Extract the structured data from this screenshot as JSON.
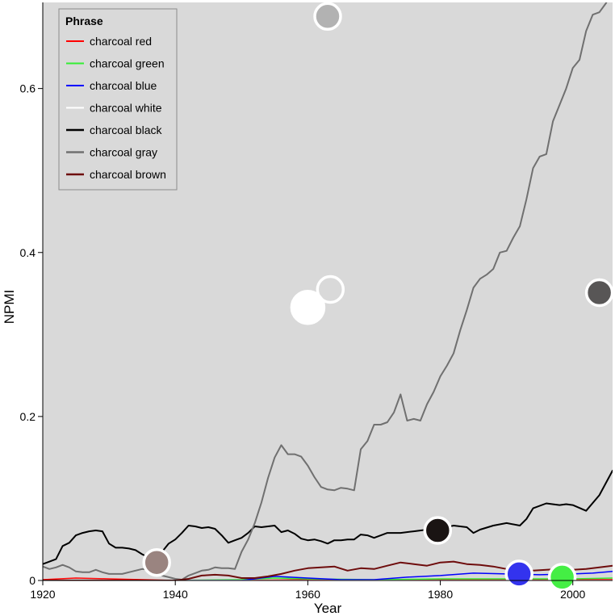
{
  "chart_data": {
    "type": "line",
    "xlabel": "Year",
    "ylabel": "NPMI",
    "xlim": [
      1920,
      2006
    ],
    "ylim": [
      0,
      0.705
    ],
    "x_ticks": [
      1920,
      1940,
      1960,
      1980,
      2000
    ],
    "y_ticks": [
      0,
      0.2,
      0.4,
      0.6
    ],
    "y_tick_labels": [
      "0",
      "0.2",
      "0.4",
      "0.6"
    ],
    "background": "#d9d9d9",
    "grid": false,
    "legend": {
      "title": "Phrase",
      "placement": "top-left"
    },
    "series": [
      {
        "name": "charcoal red",
        "color": "#ff0000",
        "width": 1.5,
        "x": [
          1920,
          1925,
          1930,
          1935,
          1940,
          1950,
          1960,
          1970,
          1980,
          1990,
          2000,
          2006
        ],
        "y": [
          0.001,
          0.003,
          0.002,
          0.001,
          0.0,
          0.0,
          0.001,
          0.0,
          0.001,
          0.001,
          0.001,
          0.001
        ]
      },
      {
        "name": "charcoal green",
        "color": "#33ee33",
        "width": 1.5,
        "x": [
          1920,
          1930,
          1940,
          1950,
          1955,
          1960,
          1970,
          1980,
          1990,
          2000,
          2006
        ],
        "y": [
          0.0,
          0.0,
          0.0,
          0.001,
          0.003,
          0.002,
          0.001,
          0.002,
          0.002,
          0.002,
          0.003
        ]
      },
      {
        "name": "charcoal blue",
        "color": "#0000ff",
        "width": 1.5,
        "x": [
          1920,
          1930,
          1940,
          1950,
          1955,
          1960,
          1965,
          1970,
          1975,
          1980,
          1985,
          1990,
          1995,
          2000,
          2003,
          2006
        ],
        "y": [
          0.0,
          0.0,
          0.0,
          0.0,
          0.005,
          0.003,
          0.001,
          0.001,
          0.004,
          0.006,
          0.009,
          0.008,
          0.007,
          0.008,
          0.009,
          0.011
        ]
      },
      {
        "name": "charcoal white",
        "color": "#ffffff",
        "width": 1.5,
        "x": [
          1920,
          1940,
          1960,
          1980,
          2000,
          2006
        ],
        "y": [
          0.0,
          0.0,
          0.0,
          0.0,
          0.0,
          0.0
        ]
      },
      {
        "name": "charcoal black",
        "color": "#000000",
        "width": 2,
        "x": [
          1920,
          1922,
          1923,
          1924,
          1925,
          1926,
          1927,
          1928,
          1929,
          1930,
          1931,
          1932,
          1933,
          1934,
          1935,
          1936,
          1937,
          1938,
          1939,
          1940,
          1941,
          1942,
          1943,
          1944,
          1945,
          1946,
          1947,
          1948,
          1949,
          1950,
          1951,
          1952,
          1953,
          1954,
          1955,
          1956,
          1957,
          1958,
          1959,
          1960,
          1961,
          1962,
          1963,
          1964,
          1965,
          1966,
          1967,
          1968,
          1969,
          1970,
          1972,
          1974,
          1976,
          1978,
          1980,
          1982,
          1984,
          1985,
          1986,
          1988,
          1990,
          1992,
          1993,
          1994,
          1996,
          1998,
          1999,
          2000,
          2002,
          2004,
          2006
        ],
        "y": [
          0.02,
          0.026,
          0.042,
          0.046,
          0.055,
          0.058,
          0.06,
          0.061,
          0.06,
          0.045,
          0.04,
          0.04,
          0.039,
          0.037,
          0.032,
          0.028,
          0.027,
          0.035,
          0.045,
          0.05,
          0.058,
          0.067,
          0.066,
          0.064,
          0.065,
          0.063,
          0.055,
          0.046,
          0.049,
          0.052,
          0.058,
          0.066,
          0.065,
          0.066,
          0.067,
          0.059,
          0.061,
          0.057,
          0.051,
          0.049,
          0.05,
          0.048,
          0.045,
          0.049,
          0.049,
          0.05,
          0.05,
          0.056,
          0.055,
          0.052,
          0.058,
          0.058,
          0.06,
          0.062,
          0.063,
          0.067,
          0.065,
          0.058,
          0.062,
          0.067,
          0.07,
          0.067,
          0.075,
          0.088,
          0.094,
          0.092,
          0.093,
          0.092,
          0.085,
          0.104,
          0.134
        ]
      },
      {
        "name": "charcoal gray",
        "color": "#707070",
        "width": 2,
        "x": [
          1920,
          1921,
          1922,
          1923,
          1924,
          1925,
          1926,
          1927,
          1928,
          1929,
          1930,
          1931,
          1932,
          1933,
          1934,
          1935,
          1936,
          1937,
          1938,
          1939,
          1940,
          1941,
          1942,
          1943,
          1944,
          1945,
          1946,
          1947,
          1948,
          1949,
          1950,
          1951,
          1952,
          1953,
          1954,
          1955,
          1956,
          1957,
          1958,
          1959,
          1960,
          1961,
          1962,
          1963,
          1964,
          1965,
          1966,
          1967,
          1968,
          1969,
          1970,
          1971,
          1972,
          1973,
          1974,
          1975,
          1976,
          1977,
          1978,
          1979,
          1980,
          1981,
          1982,
          1983,
          1984,
          1985,
          1986,
          1987,
          1988,
          1989,
          1990,
          1991,
          1992,
          1993,
          1994,
          1995,
          1996,
          1997,
          1998,
          1999,
          2000,
          2001,
          2002,
          2003,
          2004,
          2005,
          2006
        ],
        "y": [
          0.017,
          0.014,
          0.016,
          0.019,
          0.016,
          0.011,
          0.01,
          0.01,
          0.013,
          0.01,
          0.008,
          0.008,
          0.008,
          0.01,
          0.012,
          0.014,
          0.013,
          0.01,
          0.006,
          0.004,
          0.002,
          0.001,
          0.006,
          0.009,
          0.012,
          0.013,
          0.016,
          0.015,
          0.015,
          0.014,
          0.035,
          0.05,
          0.07,
          0.095,
          0.125,
          0.15,
          0.165,
          0.154,
          0.154,
          0.151,
          0.14,
          0.126,
          0.114,
          0.111,
          0.11,
          0.113,
          0.112,
          0.11,
          0.16,
          0.17,
          0.19,
          0.19,
          0.193,
          0.205,
          0.227,
          0.195,
          0.197,
          0.195,
          0.215,
          0.23,
          0.249,
          0.262,
          0.277,
          0.305,
          0.33,
          0.357,
          0.368,
          0.373,
          0.38,
          0.4,
          0.402,
          0.418,
          0.432,
          0.465,
          0.503,
          0.517,
          0.52,
          0.56,
          0.58,
          0.6,
          0.625,
          0.635,
          0.67,
          0.69,
          0.693,
          0.704,
          0.72
        ]
      },
      {
        "name": "charcoal brown",
        "color": "#6e0c0c",
        "width": 2,
        "x": [
          1920,
          1925,
          1930,
          1935,
          1940,
          1942,
          1944,
          1946,
          1948,
          1950,
          1952,
          1954,
          1956,
          1958,
          1960,
          1962,
          1964,
          1966,
          1968,
          1970,
          1972,
          1974,
          1976,
          1978,
          1980,
          1982,
          1984,
          1986,
          1988,
          1990,
          1992,
          1994,
          1996,
          1998,
          2000,
          2002,
          2004,
          2006
        ],
        "y": [
          0.0,
          0.0,
          0.0,
          0.0,
          0.0,
          0.002,
          0.006,
          0.007,
          0.006,
          0.003,
          0.003,
          0.005,
          0.008,
          0.012,
          0.015,
          0.016,
          0.017,
          0.012,
          0.015,
          0.014,
          0.018,
          0.022,
          0.02,
          0.018,
          0.022,
          0.023,
          0.02,
          0.019,
          0.017,
          0.014,
          0.012,
          0.012,
          0.013,
          0.014,
          0.013,
          0.014,
          0.016,
          0.018
        ]
      }
    ],
    "markers": [
      {
        "x": 1963,
        "y": 0.688,
        "color": "#b2b2b2",
        "r": 16
      },
      {
        "x": 1963.4,
        "y": 0.355,
        "color": "#d9d9d9",
        "r": 16
      },
      {
        "x": 1960,
        "y": 0.333,
        "color": "#ffffff",
        "r": 20
      },
      {
        "x": 2004,
        "y": 0.351,
        "color": "#585656",
        "r": 16
      },
      {
        "x": 1979.6,
        "y": 0.061,
        "color": "#1a1413",
        "r": 16
      },
      {
        "x": 1937.2,
        "y": 0.022,
        "color": "#9a8480",
        "r": 16
      },
      {
        "x": 1991.9,
        "y": 0.008,
        "color": "#3333ee",
        "r": 16
      },
      {
        "x": 1998.4,
        "y": 0.004,
        "color": "#44ee44",
        "r": 16
      }
    ]
  }
}
